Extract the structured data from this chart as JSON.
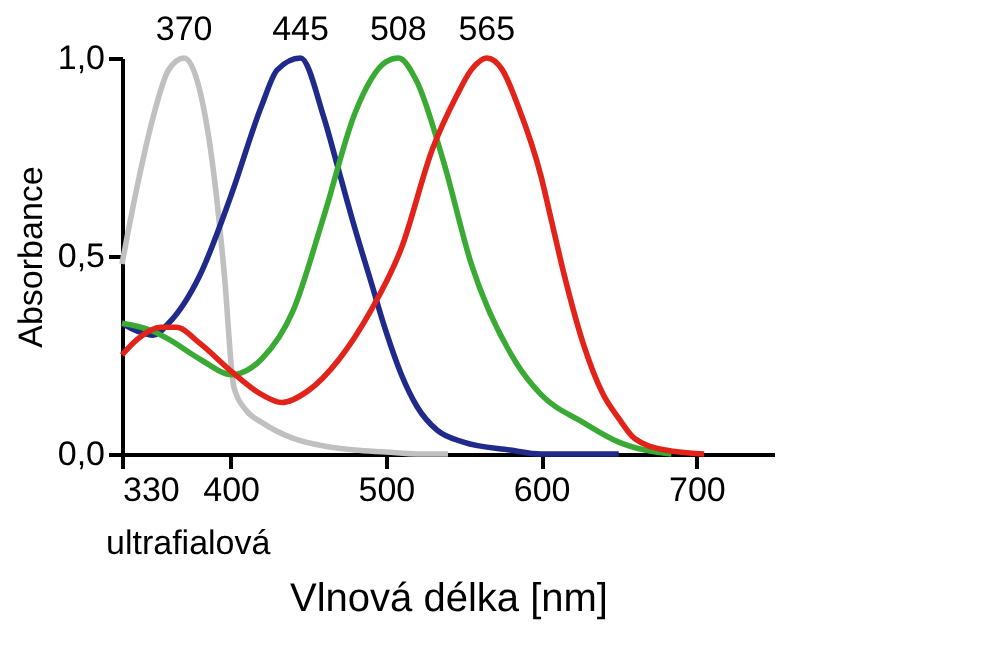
{
  "chart_data": {
    "type": "line",
    "xlabel": "Vlnová délka [nm]",
    "ylabel": "Absorbance",
    "xlim": [
      330,
      750
    ],
    "xticks": [
      330,
      400,
      500,
      600,
      700
    ],
    "ylim": [
      0,
      1
    ],
    "yticks": [
      {
        "value": 0,
        "label": "0,0"
      },
      {
        "value": 0.5,
        "label": "0,5"
      },
      {
        "value": 1,
        "label": "1,0"
      }
    ],
    "grid": false,
    "marker": "none",
    "line_style": "solid",
    "annotations": [
      {
        "text": "370",
        "x": 370,
        "y": 1.0
      },
      {
        "text": "445",
        "x": 445,
        "y": 1.0
      },
      {
        "text": "508",
        "x": 508,
        "y": 1.0
      },
      {
        "text": "565",
        "x": 565,
        "y": 1.0
      },
      "ultrafialová"
    ],
    "series": [
      {
        "color": "#c0c0c0",
        "x": [
          330,
          340,
          350,
          360,
          370,
          380,
          390,
          396,
          402,
          410,
          420,
          440,
          460,
          480,
          500,
          520,
          540
        ],
        "values": [
          0.48,
          0.68,
          0.85,
          0.97,
          1.0,
          0.92,
          0.68,
          0.45,
          0.17,
          0.11,
          0.08,
          0.04,
          0.02,
          0.01,
          0.005,
          0.0,
          0.0
        ]
      },
      {
        "color": "#1f2a8a",
        "x": [
          330,
          340,
          350,
          360,
          380,
          400,
          420,
          430,
          445,
          460,
          470,
          480,
          490,
          500,
          510,
          520,
          533,
          550,
          580,
          600,
          650
        ],
        "values": [
          0.33,
          0.31,
          0.3,
          0.33,
          0.45,
          0.65,
          0.88,
          0.97,
          1.0,
          0.85,
          0.71,
          0.57,
          0.44,
          0.31,
          0.2,
          0.12,
          0.06,
          0.03,
          0.01,
          0.0,
          0.0
        ]
      },
      {
        "color": "#3aaa35",
        "x": [
          330,
          350,
          360,
          380,
          401,
          410,
          420,
          440,
          460,
          480,
          500,
          508,
          520,
          537,
          555,
          584,
          600,
          627,
          650,
          684
        ],
        "values": [
          0.33,
          0.31,
          0.29,
          0.24,
          0.2,
          0.21,
          0.24,
          0.36,
          0.6,
          0.86,
          0.99,
          1.0,
          0.94,
          0.74,
          0.48,
          0.23,
          0.15,
          0.08,
          0.03,
          0.0
        ]
      },
      {
        "color": "#e2231a",
        "x": [
          330,
          340,
          355,
          365,
          380,
          400,
          420,
          433,
          450,
          470,
          490,
          510,
          530,
          545,
          555,
          565,
          575,
          585,
          600,
          606,
          615,
          627,
          640,
          650,
          660,
          680,
          705
        ],
        "values": [
          0.25,
          0.29,
          0.32,
          0.32,
          0.28,
          0.21,
          0.15,
          0.13,
          0.16,
          0.24,
          0.36,
          0.52,
          0.77,
          0.9,
          0.97,
          1.0,
          0.97,
          0.88,
          0.7,
          0.6,
          0.45,
          0.28,
          0.15,
          0.09,
          0.04,
          0.01,
          0.0
        ]
      }
    ]
  }
}
